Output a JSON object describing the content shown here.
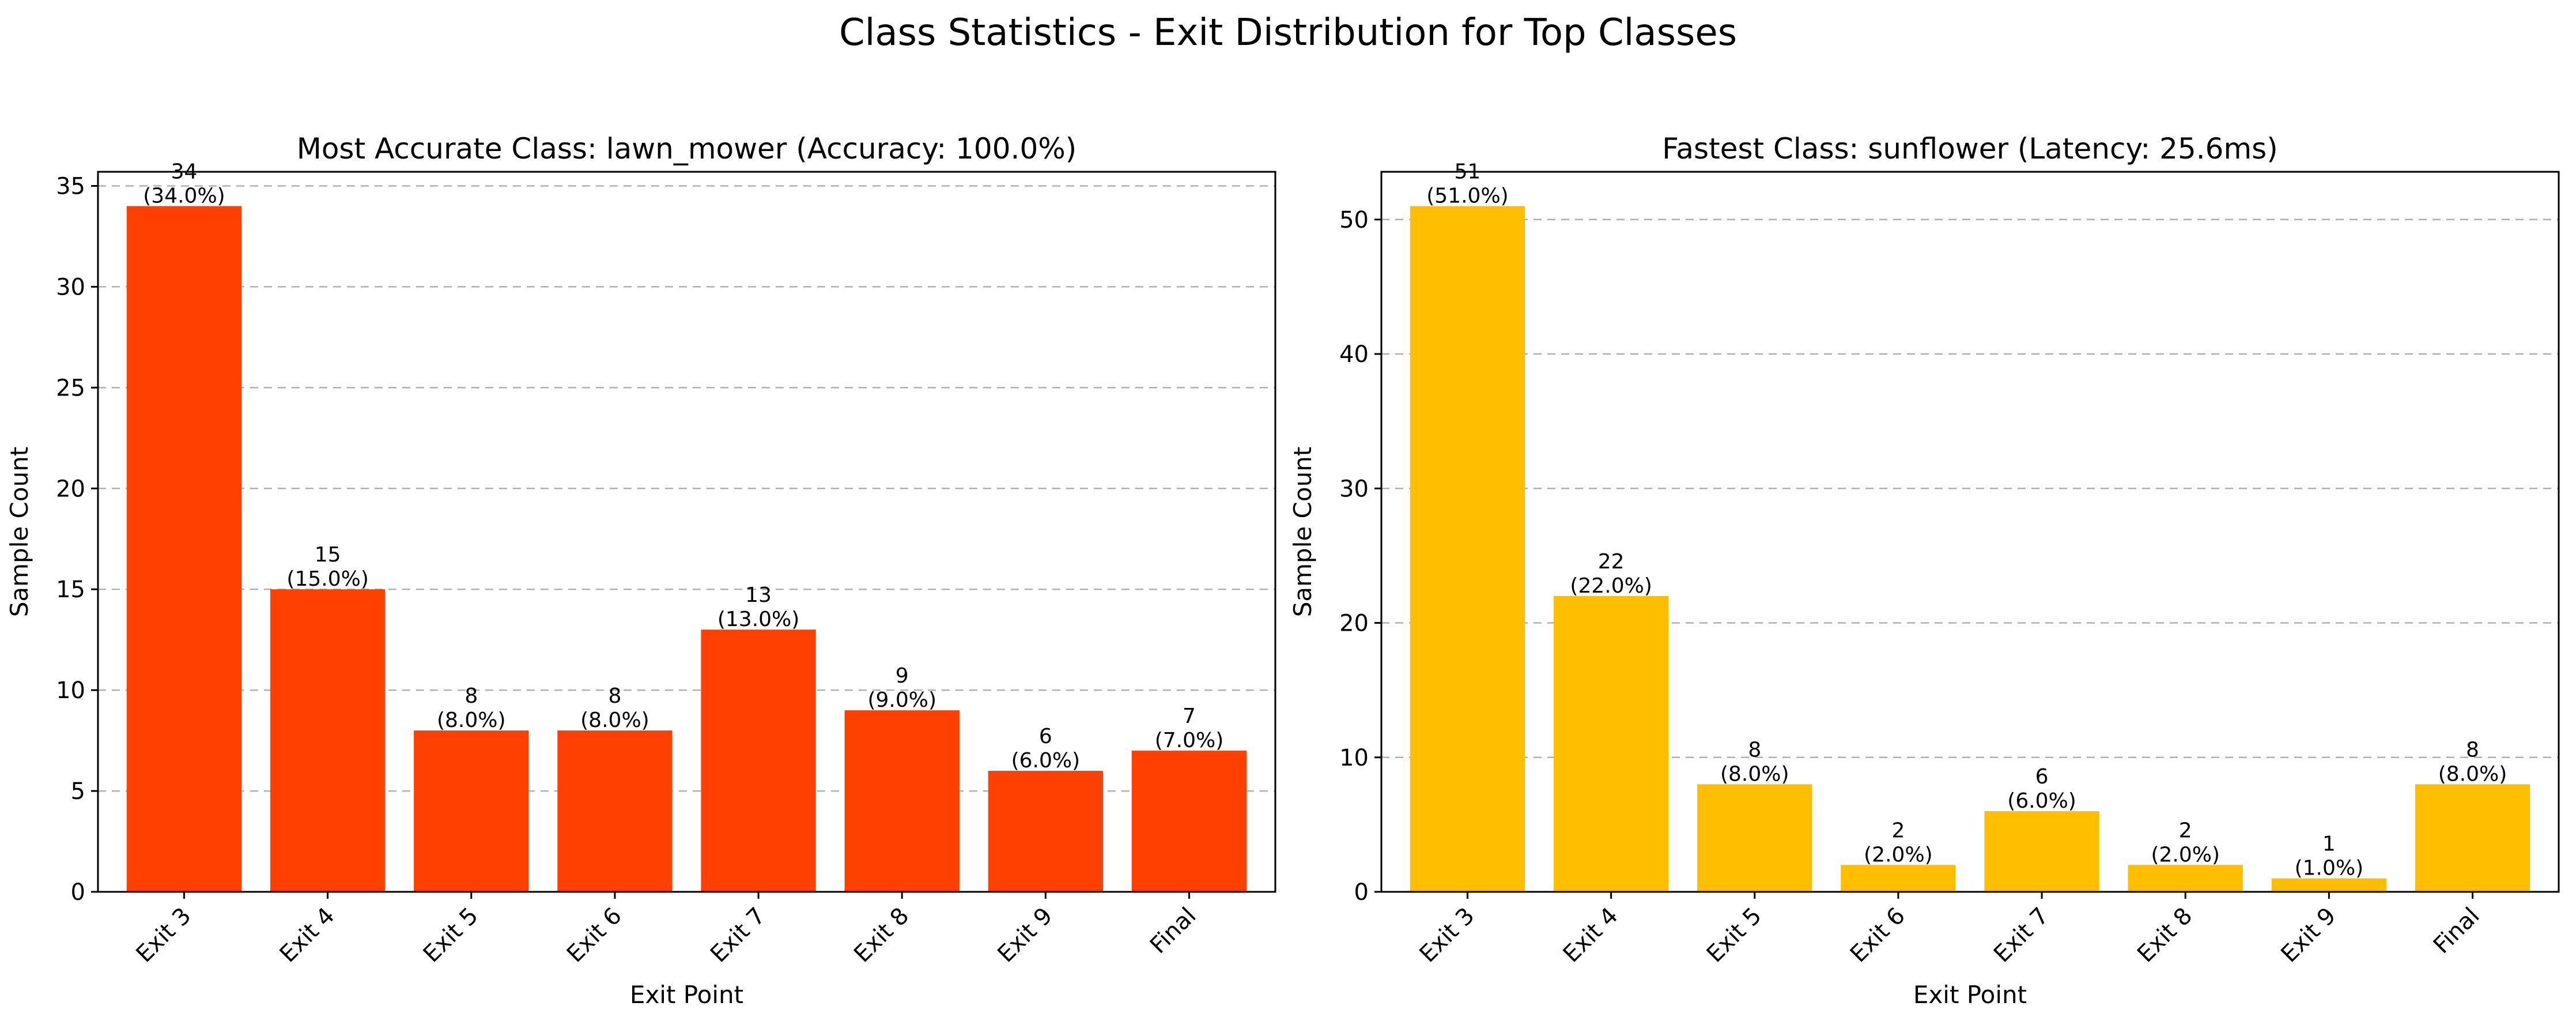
{
  "figure": {
    "suptitle": "Class Statistics - Exit Distribution for Top Classes"
  },
  "chart_data": [
    {
      "type": "bar",
      "title": "Most Accurate Class: lawn_mower (Accuracy: 100.0%)",
      "xlabel": "Exit Point",
      "ylabel": "Sample Count",
      "categories": [
        "Exit 3",
        "Exit 4",
        "Exit 5",
        "Exit 6",
        "Exit 7",
        "Exit 8",
        "Exit 9",
        "Final"
      ],
      "values": [
        34,
        15,
        8,
        8,
        13,
        9,
        6,
        7
      ],
      "bar_labels": [
        "34\n(34.0%)",
        "15\n(15.0%)",
        "8\n(8.0%)",
        "8\n(8.0%)",
        "13\n(13.0%)",
        "9\n(9.0%)",
        "6\n(6.0%)",
        "7\n(7.0%)"
      ],
      "ylim": [
        0,
        35.7
      ],
      "yticks": [
        0,
        5,
        10,
        15,
        20,
        25,
        30,
        35
      ],
      "grid": "y, dashed",
      "color": "#ff4000"
    },
    {
      "type": "bar",
      "title": "Fastest Class: sunflower (Latency: 25.6ms)",
      "xlabel": "Exit Point",
      "ylabel": "Sample Count",
      "categories": [
        "Exit 3",
        "Exit 4",
        "Exit 5",
        "Exit 6",
        "Exit 7",
        "Exit 8",
        "Exit 9",
        "Final"
      ],
      "values": [
        51,
        22,
        8,
        2,
        6,
        2,
        1,
        8
      ],
      "bar_labels": [
        "51\n(51.0%)",
        "22\n(22.0%)",
        "8\n(8.0%)",
        "2\n(2.0%)",
        "6\n(6.0%)",
        "2\n(2.0%)",
        "1\n(1.0%)",
        "8\n(8.0%)"
      ],
      "ylim": [
        0,
        53.55
      ],
      "yticks": [
        0,
        10,
        20,
        30,
        40,
        50
      ],
      "grid": "y, dashed",
      "color": "#ffbf00"
    }
  ]
}
